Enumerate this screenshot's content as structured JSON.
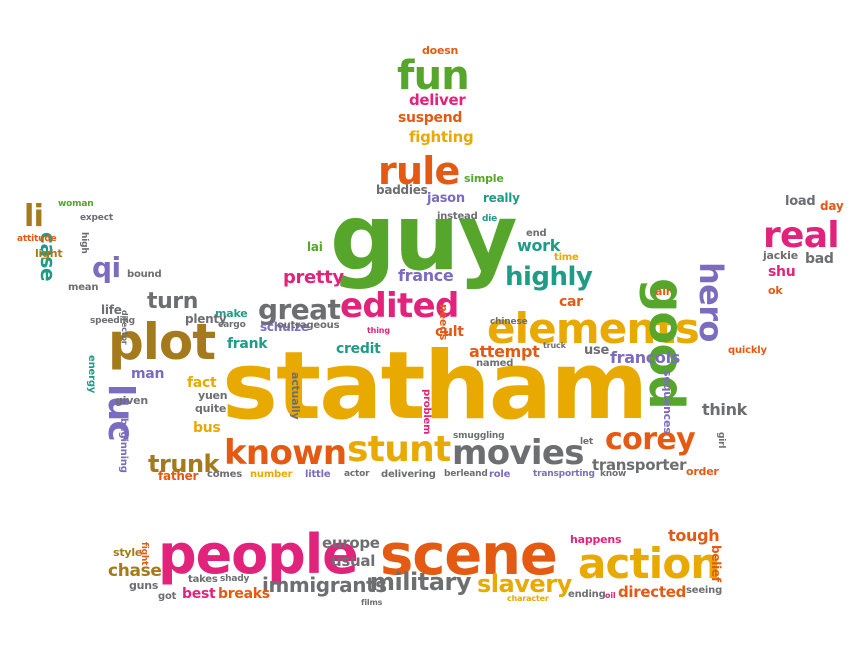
{
  "palette": {
    "pink": "#e2237b",
    "orange": "#e45a12",
    "gold": "#e8a900",
    "green": "#56a62b",
    "teal": "#1f9c86",
    "purple": "#7b6cc0",
    "gray": "#6d6e71",
    "brown": "#a47a1c"
  },
  "words": [
    {
      "text": "statham",
      "color": "gold"
    },
    {
      "text": "guy",
      "color": "green"
    },
    {
      "text": "plot",
      "color": "brown"
    },
    {
      "text": "scene",
      "color": "orange"
    },
    {
      "text": "people",
      "color": "pink"
    },
    {
      "text": "elements",
      "color": "gold"
    },
    {
      "text": "action",
      "color": "gold"
    },
    {
      "text": "good",
      "color": "green"
    },
    {
      "text": "movies",
      "color": "gray"
    },
    {
      "text": "stunt",
      "color": "gold"
    },
    {
      "text": "known",
      "color": "orange"
    },
    {
      "text": "corey",
      "color": "orange"
    },
    {
      "text": "edited",
      "color": "pink"
    },
    {
      "text": "luc",
      "color": "purple"
    },
    {
      "text": "rule",
      "color": "orange"
    },
    {
      "text": "fun",
      "color": "green"
    },
    {
      "text": "real",
      "color": "pink"
    },
    {
      "text": "hero",
      "color": "purple"
    },
    {
      "text": "great",
      "color": "gray"
    },
    {
      "text": "highly",
      "color": "teal"
    },
    {
      "text": "trunk",
      "color": "brown"
    },
    {
      "text": "military",
      "color": "gray"
    },
    {
      "text": "slavery",
      "color": "gold"
    },
    {
      "text": "immigrants",
      "color": "gray"
    },
    {
      "text": "qi",
      "color": "purple"
    },
    {
      "text": "li",
      "color": "brown"
    },
    {
      "text": "case",
      "color": "teal"
    },
    {
      "text": "turn",
      "color": "gray"
    },
    {
      "text": "pretty",
      "color": "pink"
    },
    {
      "text": "france",
      "color": "purple"
    },
    {
      "text": "attempt",
      "color": "orange"
    },
    {
      "text": "francois",
      "color": "purple"
    },
    {
      "text": "think",
      "color": "gray"
    },
    {
      "text": "transporter",
      "color": "gray"
    },
    {
      "text": "tough",
      "color": "orange"
    },
    {
      "text": "directed",
      "color": "orange"
    },
    {
      "text": "best",
      "color": "pink"
    },
    {
      "text": "breaks",
      "color": "orange"
    },
    {
      "text": "chase",
      "color": "brown"
    },
    {
      "text": "usual",
      "color": "gray"
    },
    {
      "text": "europe",
      "color": "gray"
    },
    {
      "text": "happens",
      "color": "pink"
    },
    {
      "text": "fact",
      "color": "gold"
    },
    {
      "text": "bus",
      "color": "gold"
    },
    {
      "text": "credit",
      "color": "teal"
    },
    {
      "text": "cult",
      "color": "orange"
    },
    {
      "text": "use",
      "color": "gray"
    },
    {
      "text": "make",
      "color": "teal"
    },
    {
      "text": "frank",
      "color": "teal"
    },
    {
      "text": "man",
      "color": "purple"
    },
    {
      "text": "car",
      "color": "orange"
    },
    {
      "text": "work",
      "color": "teal"
    },
    {
      "text": "lai",
      "color": "green"
    },
    {
      "text": "deliver",
      "color": "pink"
    },
    {
      "text": "suspend",
      "color": "orange"
    },
    {
      "text": "fighting",
      "color": "gold"
    },
    {
      "text": "baddies",
      "color": "gray"
    },
    {
      "text": "jason",
      "color": "purple"
    },
    {
      "text": "really",
      "color": "teal"
    },
    {
      "text": "simple",
      "color": "green"
    },
    {
      "text": "instead",
      "color": "gray"
    },
    {
      "text": "time",
      "color": "gold"
    },
    {
      "text": "end",
      "color": "gray"
    },
    {
      "text": "doesn",
      "color": "orange"
    },
    {
      "text": "die",
      "color": "teal"
    },
    {
      "text": "schulze",
      "color": "purple"
    },
    {
      "text": "outrageous",
      "color": "gray"
    },
    {
      "text": "cargo",
      "color": "gray"
    },
    {
      "text": "life",
      "color": "gray"
    },
    {
      "text": "plenty",
      "color": "gray"
    },
    {
      "text": "yuen",
      "color": "gray"
    },
    {
      "text": "quite",
      "color": "gray"
    },
    {
      "text": "given",
      "color": "gray"
    },
    {
      "text": "father",
      "color": "orange"
    },
    {
      "text": "comes",
      "color": "gray"
    },
    {
      "text": "number",
      "color": "gold"
    },
    {
      "text": "little",
      "color": "purple"
    },
    {
      "text": "actor",
      "color": "gray"
    },
    {
      "text": "delivering",
      "color": "gray"
    },
    {
      "text": "berleand",
      "color": "gray"
    },
    {
      "text": "role",
      "color": "purple"
    },
    {
      "text": "transporting",
      "color": "purple"
    },
    {
      "text": "know",
      "color": "gray"
    },
    {
      "text": "order",
      "color": "orange"
    },
    {
      "text": "smuggling",
      "color": "gray"
    },
    {
      "text": "named",
      "color": "gray"
    },
    {
      "text": "needs",
      "color": "orange"
    },
    {
      "text": "chinese",
      "color": "gray"
    },
    {
      "text": "truck",
      "color": "gray"
    },
    {
      "text": "thing",
      "color": "pink"
    },
    {
      "text": "problem",
      "color": "pink"
    },
    {
      "text": "actually",
      "color": "gray"
    },
    {
      "text": "sequences",
      "color": "purple"
    },
    {
      "text": "quickly",
      "color": "orange"
    },
    {
      "text": "air",
      "color": "orange"
    },
    {
      "text": "girl",
      "color": "gray"
    },
    {
      "text": "let",
      "color": "gray"
    },
    {
      "text": "load",
      "color": "gray"
    },
    {
      "text": "day",
      "color": "orange"
    },
    {
      "text": "jackie",
      "color": "gray"
    },
    {
      "text": "bad",
      "color": "gray"
    },
    {
      "text": "shu",
      "color": "pink"
    },
    {
      "text": "ok",
      "color": "orange"
    },
    {
      "text": "woman",
      "color": "green"
    },
    {
      "text": "expect",
      "color": "gray"
    },
    {
      "text": "attitude",
      "color": "orange"
    },
    {
      "text": "high",
      "color": "gray"
    },
    {
      "text": "light",
      "color": "brown"
    },
    {
      "text": "bound",
      "color": "gray"
    },
    {
      "text": "mean",
      "color": "gray"
    },
    {
      "text": "speeding",
      "color": "gray"
    },
    {
      "text": "director",
      "color": "gray"
    },
    {
      "text": "energy",
      "color": "teal"
    },
    {
      "text": "beginning",
      "color": "purple"
    },
    {
      "text": "style",
      "color": "brown"
    },
    {
      "text": "fight",
      "color": "orange"
    },
    {
      "text": "guns",
      "color": "gray"
    },
    {
      "text": "got",
      "color": "gray"
    },
    {
      "text": "takes",
      "color": "gray"
    },
    {
      "text": "shady",
      "color": "gray"
    },
    {
      "text": "films",
      "color": "gray"
    },
    {
      "text": "character",
      "color": "gold"
    },
    {
      "text": "ending",
      "color": "gray"
    },
    {
      "text": "oil",
      "color": "pink"
    },
    {
      "text": "seeing",
      "color": "gray"
    },
    {
      "text": "belief",
      "color": "orange"
    }
  ]
}
